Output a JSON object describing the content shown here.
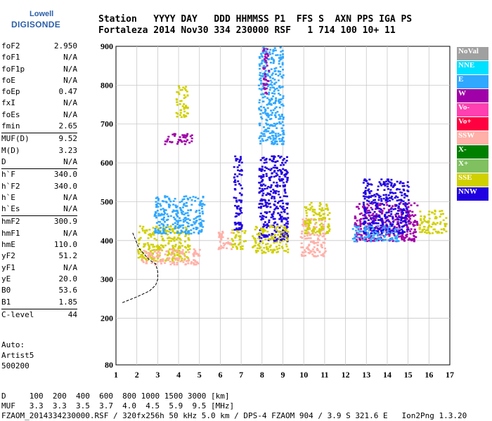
{
  "logo": {
    "line1": "Lowell",
    "line2": "DIGISONDE"
  },
  "header": {
    "row1": "Station   YYYY DAY   DDD HHMMSS P1  FFS S  AXN PPS IGA PS",
    "row2": "Fortaleza 2014 Nov30 334 230000 RSF   1 714 100 10+ 11"
  },
  "params": [
    {
      "label": "foF2",
      "value": "2.950"
    },
    {
      "label": "foF1",
      "value": "N/A"
    },
    {
      "label": "foF1p",
      "value": "N/A"
    },
    {
      "label": "foE",
      "value": "N/A"
    },
    {
      "label": "foEp",
      "value": "0.47"
    },
    {
      "label": "fxI",
      "value": "N/A"
    },
    {
      "label": "foEs",
      "value": "N/A"
    },
    {
      "label": "fmin",
      "value": "2.65"
    },
    {
      "label": "MUF(D)",
      "value": "9.52",
      "sep": true
    },
    {
      "label": "M(D)",
      "value": "3.23"
    },
    {
      "label": "D",
      "value": "N/A"
    },
    {
      "label": "h`F",
      "value": "340.0",
      "sep": true
    },
    {
      "label": "h`F2",
      "value": "340.0"
    },
    {
      "label": "h`E",
      "value": "N/A"
    },
    {
      "label": "h`Es",
      "value": "N/A"
    },
    {
      "label": "hmF2",
      "value": "300.9",
      "sep": true
    },
    {
      "label": "hmF1",
      "value": "N/A"
    },
    {
      "label": "hmE",
      "value": "110.0"
    },
    {
      "label": "yF2",
      "value": "51.2"
    },
    {
      "label": "yF1",
      "value": "N/A"
    },
    {
      "label": "yE",
      "value": "20.0"
    },
    {
      "label": "B0",
      "value": "53.6"
    },
    {
      "label": "B1",
      "value": "1.85"
    },
    {
      "label": "C-level",
      "value": "44",
      "sep": true
    }
  ],
  "auto": {
    "line1": "Auto:",
    "line2": "Artist5",
    "line3": "500200"
  },
  "footer": {
    "d_row": "D     100  200  400  600  800 1000 1500 3000 [km]",
    "muf_row": "MUF   3.3  3.3  3.5  3.7  4.0  4.5  5.9  9.5 [MHz]",
    "status": "FZAOM_2014334230000.RSF / 320fx256h 50 kHz 5.0 km / DPS-4 FZAOM 904 / 3.9 S 321.6 E   Ion2Png 1.3.20"
  },
  "legend": [
    {
      "name": "NoVal",
      "color": "#a0a0a0"
    },
    {
      "name": "NNE",
      "color": "#00e0ff"
    },
    {
      "name": "E",
      "color": "#30a8ff"
    },
    {
      "name": "W",
      "color": "#a000a8"
    },
    {
      "name": "Vo-",
      "color": "#ff40b0"
    },
    {
      "name": "Vo+",
      "color": "#ff0040"
    },
    {
      "name": "SSW",
      "color": "#ffb0a8"
    },
    {
      "name": "X-",
      "color": "#008000"
    },
    {
      "name": "X+",
      "color": "#80c060"
    },
    {
      "name": "SSE",
      "color": "#d0d000"
    },
    {
      "name": "NNW",
      "color": "#2000e0"
    }
  ],
  "chart_data": {
    "type": "scatter",
    "xlim": [
      1,
      17
    ],
    "ylim": [
      80,
      900
    ],
    "xticks": [
      1,
      2,
      3,
      4,
      5,
      6,
      7,
      8,
      9,
      10,
      11,
      12,
      13,
      14,
      15,
      16,
      17
    ],
    "yticks": [
      80,
      200,
      300,
      400,
      500,
      600,
      700,
      800,
      900
    ],
    "grid": true,
    "legend_position": "right",
    "clusters": [
      {
        "color": "SSE",
        "x": [
          2.0,
          4.5
        ],
        "y": [
          350,
          440
        ]
      },
      {
        "color": "SSW",
        "x": [
          2.2,
          5.0
        ],
        "y": [
          340,
          380
        ]
      },
      {
        "color": "E",
        "x": [
          2.8,
          5.2
        ],
        "y": [
          420,
          520
        ]
      },
      {
        "color": "SSE",
        "x": [
          3.8,
          4.4
        ],
        "y": [
          720,
          800
        ]
      },
      {
        "color": "W",
        "x": [
          3.3,
          4.6
        ],
        "y": [
          650,
          680
        ]
      },
      {
        "color": "SSW",
        "x": [
          5.8,
          6.5
        ],
        "y": [
          380,
          430
        ]
      },
      {
        "color": "NNW",
        "x": [
          6.6,
          7.0
        ],
        "y": [
          430,
          620
        ]
      },
      {
        "color": "SSE",
        "x": [
          6.5,
          7.2
        ],
        "y": [
          380,
          430
        ]
      },
      {
        "color": "NNW",
        "x": [
          7.8,
          9.2
        ],
        "y": [
          400,
          620
        ]
      },
      {
        "color": "E",
        "x": [
          7.8,
          9.0
        ],
        "y": [
          650,
          900
        ]
      },
      {
        "color": "W",
        "x": [
          8.0,
          8.3
        ],
        "y": [
          780,
          900
        ]
      },
      {
        "color": "SSE",
        "x": [
          7.5,
          9.2
        ],
        "y": [
          370,
          440
        ]
      },
      {
        "color": "SSW",
        "x": [
          9.8,
          11.0
        ],
        "y": [
          360,
          460
        ]
      },
      {
        "color": "SSE",
        "x": [
          10.0,
          11.2
        ],
        "y": [
          420,
          500
        ]
      },
      {
        "color": "W",
        "x": [
          12.4,
          15.4
        ],
        "y": [
          400,
          500
        ]
      },
      {
        "color": "NNW",
        "x": [
          12.8,
          15.0
        ],
        "y": [
          420,
          560
        ]
      },
      {
        "color": "E",
        "x": [
          12.3,
          14.5
        ],
        "y": [
          400,
          440
        ]
      },
      {
        "color": "SSE",
        "x": [
          15.5,
          16.8
        ],
        "y": [
          420,
          480
        ]
      }
    ],
    "trace": {
      "x": [
        1.8,
        2.1,
        2.6,
        2.9,
        3.0,
        3.0,
        2.9,
        2.6,
        2.0,
        1.3
      ],
      "y": [
        420,
        380,
        350,
        340,
        320,
        300,
        285,
        270,
        255,
        240
      ]
    }
  }
}
